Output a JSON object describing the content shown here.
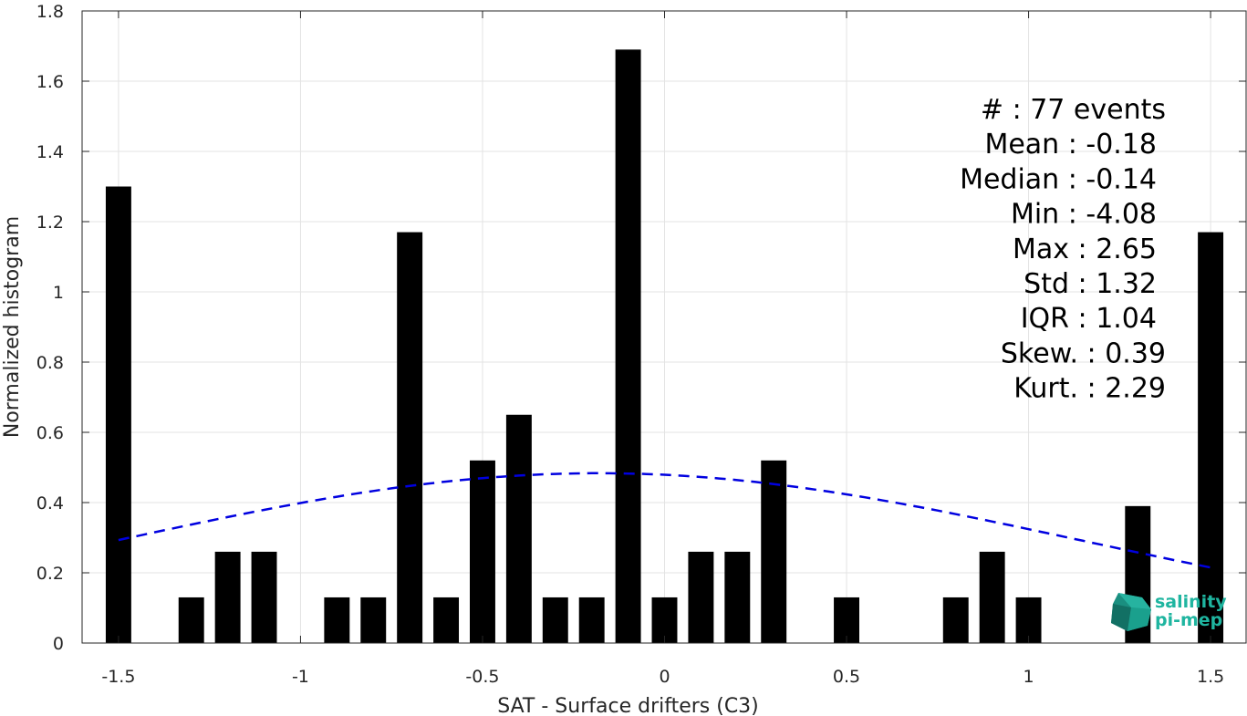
{
  "chart_data": {
    "type": "bar",
    "xlabel": "SAT - Surface drifters (C3)",
    "ylabel": "Normalized histogram",
    "xlim": [
      -1.6,
      1.6
    ],
    "ylim": [
      0,
      1.8
    ],
    "xticks": [
      -1.5,
      -1,
      -0.5,
      0,
      0.5,
      1,
      1.5
    ],
    "xtick_labels": [
      "-1.5",
      "-1",
      "-0.5",
      "0",
      "0.5",
      "1",
      "1.5"
    ],
    "yticks": [
      0,
      0.2,
      0.4,
      0.6,
      0.8,
      1,
      1.2,
      1.4,
      1.6,
      1.8
    ],
    "ytick_labels": [
      "0",
      "0.2",
      "0.4",
      "0.6",
      "0.8",
      "1",
      "1.2",
      "1.4",
      "1.6",
      "1.8"
    ],
    "grid": true,
    "bar_color": "#000000",
    "fit_color": "#0000e0",
    "bar_width": 0.07,
    "bars": [
      {
        "x": -1.5,
        "y": 1.3
      },
      {
        "x": -1.3,
        "y": 0.13
      },
      {
        "x": -1.2,
        "y": 0.26
      },
      {
        "x": -1.1,
        "y": 0.26
      },
      {
        "x": -0.9,
        "y": 0.13
      },
      {
        "x": -0.8,
        "y": 0.13
      },
      {
        "x": -0.7,
        "y": 1.17
      },
      {
        "x": -0.6,
        "y": 0.13
      },
      {
        "x": -0.5,
        "y": 0.52
      },
      {
        "x": -0.4,
        "y": 0.65
      },
      {
        "x": -0.3,
        "y": 0.13
      },
      {
        "x": -0.2,
        "y": 0.13
      },
      {
        "x": -0.1,
        "y": 1.69
      },
      {
        "x": 0.0,
        "y": 0.13
      },
      {
        "x": 0.1,
        "y": 0.26
      },
      {
        "x": 0.2,
        "y": 0.26
      },
      {
        "x": 0.3,
        "y": 0.52
      },
      {
        "x": 0.5,
        "y": 0.13
      },
      {
        "x": 0.8,
        "y": 0.13
      },
      {
        "x": 0.9,
        "y": 0.26
      },
      {
        "x": 1.0,
        "y": 0.13
      },
      {
        "x": 1.3,
        "y": 0.39
      },
      {
        "x": 1.5,
        "y": 1.17
      }
    ],
    "fit": {
      "type": "normal",
      "mean": -0.18,
      "std": 1.32,
      "x_range": [
        -1.5,
        1.5
      ],
      "style": "dashed"
    },
    "annotations": [
      "#  : 77 events",
      "Mean : -0.18",
      "Median : -0.14",
      "Min : -4.08",
      "Max : 2.65",
      "Std : 1.32",
      "IQR : 1.04",
      "Skew. : 0.39",
      "Kurt. : 2.29"
    ]
  },
  "logo": {
    "line1": "salinity",
    "line2": "pi-mep"
  }
}
